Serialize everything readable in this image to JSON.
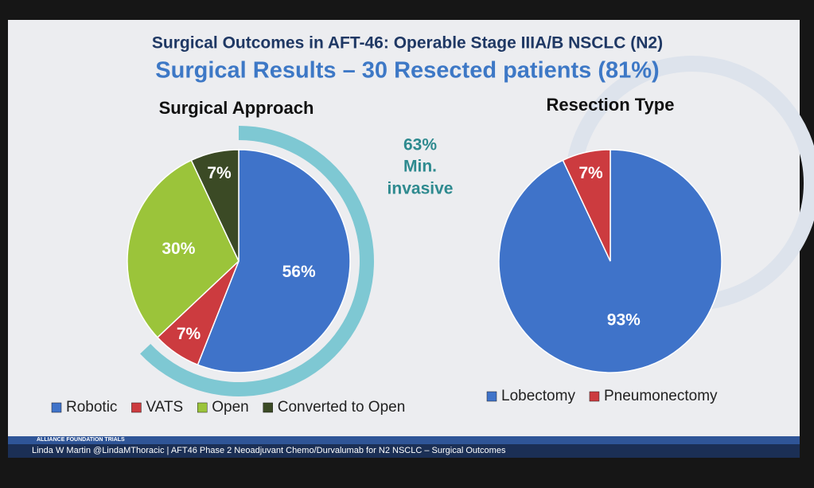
{
  "header": {
    "title": "Surgical Outcomes in AFT-46: Operable Stage IIIA/B NSCLC (N2)",
    "subtitle": "Surgical Results – 30 Resected patients (81%)"
  },
  "footer": {
    "logo": "ALLIANCE FOUNDATION TRIALS",
    "text": "Linda W Martin @LindaMThoracic | AFT46 Phase 2 Neoadjuvant Chemo/Durvalumab for N2 NSCLC – Surgical Outcomes"
  },
  "chart_data": [
    {
      "type": "pie",
      "title": "Surgical Approach",
      "categories": [
        "Robotic",
        "VATS",
        "Open",
        "Converted to Open"
      ],
      "values": [
        56,
        7,
        30,
        7
      ],
      "value_labels": [
        "56%",
        "7%",
        "30%",
        "7%"
      ],
      "colors": [
        "#3f73c9",
        "#cc3b3f",
        "#9bc43a",
        "#3b4a25"
      ],
      "annotation": {
        "value": 63,
        "label": "63%",
        "text": [
          "Min.",
          "invasive"
        ],
        "color": "#7ec8d3"
      },
      "legend": "bottom"
    },
    {
      "type": "pie",
      "title": "Resection Type",
      "categories": [
        "Lobectomy",
        "Pneumonectomy"
      ],
      "values": [
        93,
        7
      ],
      "value_labels": [
        "93%",
        "7%"
      ],
      "colors": [
        "#3f73c9",
        "#cc3b3f"
      ],
      "legend": "bottom"
    }
  ]
}
